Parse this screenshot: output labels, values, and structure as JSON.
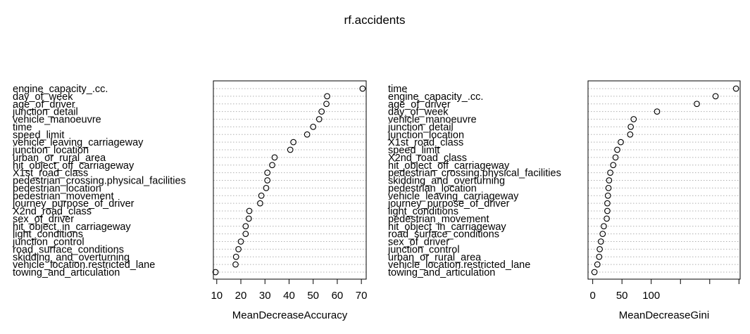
{
  "title": "rf.accidents",
  "chart_data": [
    {
      "type": "scatter",
      "xlabel": "MeanDecreaseAccuracy",
      "xlim": [
        8.6,
        72
      ],
      "xticks": [
        10,
        20,
        30,
        40,
        50,
        60,
        70
      ],
      "grid": "horizontal dotted",
      "marker": "open-circle",
      "rows": [
        {
          "label": "engine_capacity_.cc.",
          "value": 70.5
        },
        {
          "label": "day_of_week",
          "value": 55.8
        },
        {
          "label": "age_of_driver",
          "value": 55.5
        },
        {
          "label": "junction_detail",
          "value": 53.5
        },
        {
          "label": "vehicle_manoeuvre",
          "value": 52.5
        },
        {
          "label": "time",
          "value": 50.0
        },
        {
          "label": "speed_limit",
          "value": 47.5
        },
        {
          "label": "vehicle_leaving_carriageway",
          "value": 41.8
        },
        {
          "label": "junction_location",
          "value": 40.5
        },
        {
          "label": "urban_or_rural_area",
          "value": 34.0
        },
        {
          "label": "hit_object_off_carriageway",
          "value": 33.0
        },
        {
          "label": "X1st_road_class",
          "value": 31.0
        },
        {
          "label": "pedestrian_crossing.physical_facilities",
          "value": 31.0
        },
        {
          "label": "pedestrian_location",
          "value": 30.5
        },
        {
          "label": "pedestrian_movement",
          "value": 28.5
        },
        {
          "label": "journey_purpose_of_driver",
          "value": 28.0
        },
        {
          "label": "X2nd_road_class",
          "value": 23.5
        },
        {
          "label": "sex_of_driver",
          "value": 23.3
        },
        {
          "label": "hit_object_in_carriageway",
          "value": 22.0
        },
        {
          "label": "light_conditions",
          "value": 22.0
        },
        {
          "label": "junction_control",
          "value": 20.0
        },
        {
          "label": "road_surface_conditions",
          "value": 19.0
        },
        {
          "label": "skidding_and_overturning",
          "value": 18.0
        },
        {
          "label": "vehicle_location.restricted_lane",
          "value": 17.8
        },
        {
          "label": "towing_and_articulation",
          "value": 9.5
        }
      ]
    },
    {
      "type": "scatter",
      "xlabel": "MeanDecreaseGini",
      "xlim": [
        -8,
        252
      ],
      "xticks": [
        0,
        50,
        100,
        150,
        200,
        250
      ],
      "xticklabels": [
        "0",
        "50",
        "100",
        "",
        "",
        ""
      ],
      "grid": "horizontal dotted",
      "marker": "open-circle",
      "rows": [
        {
          "label": "time",
          "value": 245
        },
        {
          "label": "engine_capacity_.cc.",
          "value": 210
        },
        {
          "label": "age_of_driver",
          "value": 178
        },
        {
          "label": "day_of_week",
          "value": 110
        },
        {
          "label": "vehicle_manoeuvre",
          "value": 70
        },
        {
          "label": "junction_detail",
          "value": 65
        },
        {
          "label": "junction_location",
          "value": 64
        },
        {
          "label": "X1st_road_class",
          "value": 48
        },
        {
          "label": "speed_limit",
          "value": 42
        },
        {
          "label": "X2nd_road_class",
          "value": 39
        },
        {
          "label": "hit_object_off_carriageway",
          "value": 35
        },
        {
          "label": "pedestrian_crossing.physical_facilities",
          "value": 30
        },
        {
          "label": "skidding_and_overturning",
          "value": 28
        },
        {
          "label": "pedestrian_location",
          "value": 27
        },
        {
          "label": "vehicle_leaving_carriageway",
          "value": 26
        },
        {
          "label": "journey_purpose_of_driver",
          "value": 25
        },
        {
          "label": "light_conditions",
          "value": 25
        },
        {
          "label": "pedestrian_movement",
          "value": 24
        },
        {
          "label": "hit_object_in_carriageway",
          "value": 19
        },
        {
          "label": "road_surface_conditions",
          "value": 17
        },
        {
          "label": "sex_of_driver",
          "value": 14
        },
        {
          "label": "junction_control",
          "value": 12
        },
        {
          "label": "urban_or_rural_area",
          "value": 11
        },
        {
          "label": "vehicle_location.restricted_lane",
          "value": 8
        },
        {
          "label": "towing_and_articulation",
          "value": 3
        }
      ]
    }
  ]
}
